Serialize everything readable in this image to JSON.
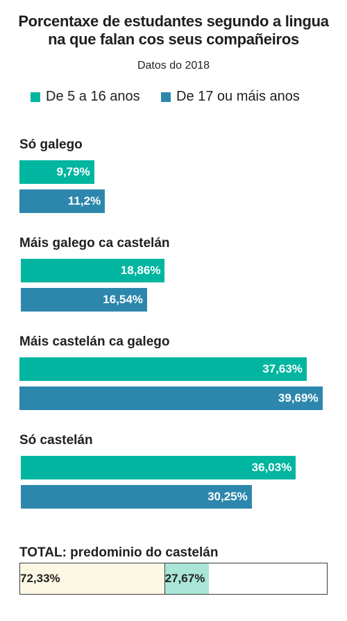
{
  "title_line1": "Porcentaxe de estudantes segundo a lingua",
  "title_line2": "na que falan cos seus compañeiros",
  "subtitle": "Datos do 2018",
  "colors": {
    "series0": "#00b6a0",
    "series1": "#2d87ad",
    "total_left": "#fdf8e4",
    "total_right": "#a9e6d8"
  },
  "chart_data": {
    "type": "bar",
    "orientation": "horizontal",
    "categories": [
      "Só galego",
      "Máis galego ca castelán",
      "Máis castelán ca galego",
      "Só castelán"
    ],
    "series": [
      {
        "name": "De 5 a 16 anos",
        "values": [
          9.79,
          18.86,
          37.63,
          36.03
        ],
        "labels": [
          "9,79%",
          "18,86%",
          "37,63%",
          "36,03%"
        ]
      },
      {
        "name": "De 17 ou máis anos",
        "values": [
          11.2,
          16.54,
          39.69,
          30.25
        ],
        "labels": [
          "11,2%",
          "16,54%",
          "39,69%",
          "30,25%"
        ]
      }
    ],
    "legend": "top",
    "grid": false,
    "xlim": [
      0,
      40
    ]
  },
  "total": {
    "label": "TOTAL: predominio do castelán",
    "segments": [
      {
        "value": 72.33,
        "label": "72,33%"
      },
      {
        "value": 27.67,
        "label": "27,67%"
      }
    ]
  }
}
